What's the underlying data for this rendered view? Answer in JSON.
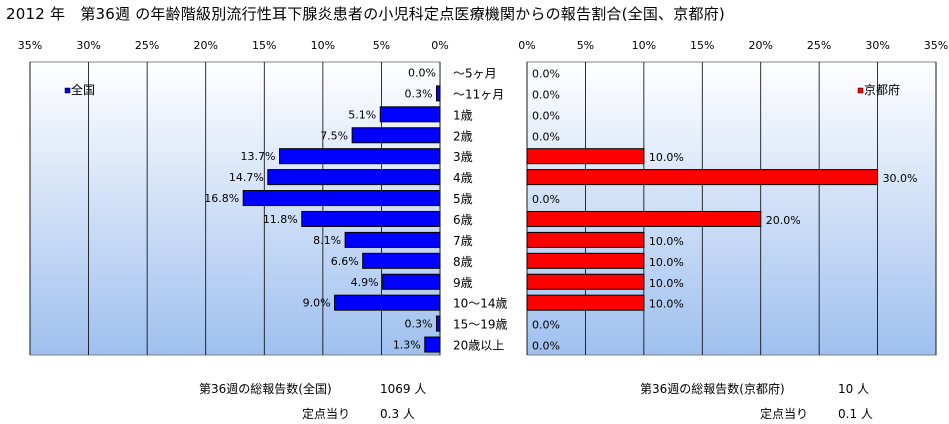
{
  "title": "2012 年　第36週 の年齢階級別流行性耳下腺炎患者の小児科定点医療機関からの報告割合(全国、京都府)",
  "colors": {
    "national_bar": "#0000ff",
    "kyoto_bar": "#ff0000",
    "plot_bg_top": "#ffffff",
    "plot_bg_bottom": "#9fc0ef"
  },
  "chart_data": [
    {
      "type": "bar",
      "orientation": "horizontal",
      "direction": "right-to-left",
      "legend": "全国",
      "legend_position": "top-left",
      "series": [
        {
          "name": "全国",
          "values": [
            0.0,
            0.3,
            5.1,
            7.5,
            13.7,
            14.7,
            16.8,
            11.8,
            8.1,
            6.6,
            4.9,
            9.0,
            0.3,
            1.3
          ]
        }
      ],
      "data_labels": [
        "0.0%",
        "0.3%",
        "5.1%",
        "7.5%",
        "13.7%",
        "14.7%",
        "16.8%",
        "11.8%",
        "8.1%",
        "6.6%",
        "4.9%",
        "9.0%",
        "0.3%",
        "1.3%"
      ],
      "xlim": [
        0,
        35
      ],
      "x_ticks": [
        "35%",
        "30%",
        "25%",
        "20%",
        "15%",
        "10%",
        "5%",
        "0%"
      ],
      "grid": true
    },
    {
      "type": "bar",
      "orientation": "horizontal",
      "direction": "left-to-right",
      "legend": "京都府",
      "legend_position": "top-right",
      "series": [
        {
          "name": "京都府",
          "values": [
            0.0,
            0.0,
            0.0,
            0.0,
            10.0,
            30.0,
            0.0,
            20.0,
            10.0,
            10.0,
            10.0,
            10.0,
            0.0,
            0.0
          ]
        }
      ],
      "data_labels": [
        "0.0%",
        "0.0%",
        "0.0%",
        "0.0%",
        "10.0%",
        "30.0%",
        "0.0%",
        "20.0%",
        "10.0%",
        "10.0%",
        "10.0%",
        "10.0%",
        "0.0%",
        "0.0%"
      ],
      "xlim": [
        0,
        35
      ],
      "x_ticks": [
        "0%",
        "5%",
        "10%",
        "15%",
        "20%",
        "25%",
        "30%",
        "35%"
      ],
      "grid": true
    }
  ],
  "categories": [
    "～5ヶ月",
    "～11ヶ月",
    "1歳",
    "2歳",
    "3歳",
    "4歳",
    "5歳",
    "6歳",
    "7歳",
    "8歳",
    "9歳",
    "10～14歳",
    "15～19歳",
    "20歳以上"
  ],
  "footer": {
    "national_total_label": "第36週の総報告数(全国)",
    "national_total_value": "1069 人",
    "national_per_label": "定点当り",
    "national_per_value": "0.3 人",
    "kyoto_total_label": "第36週の総報告数(京都府)",
    "kyoto_total_value": "10 人",
    "kyoto_per_label": "定点当り",
    "kyoto_per_value": "0.1 人"
  }
}
